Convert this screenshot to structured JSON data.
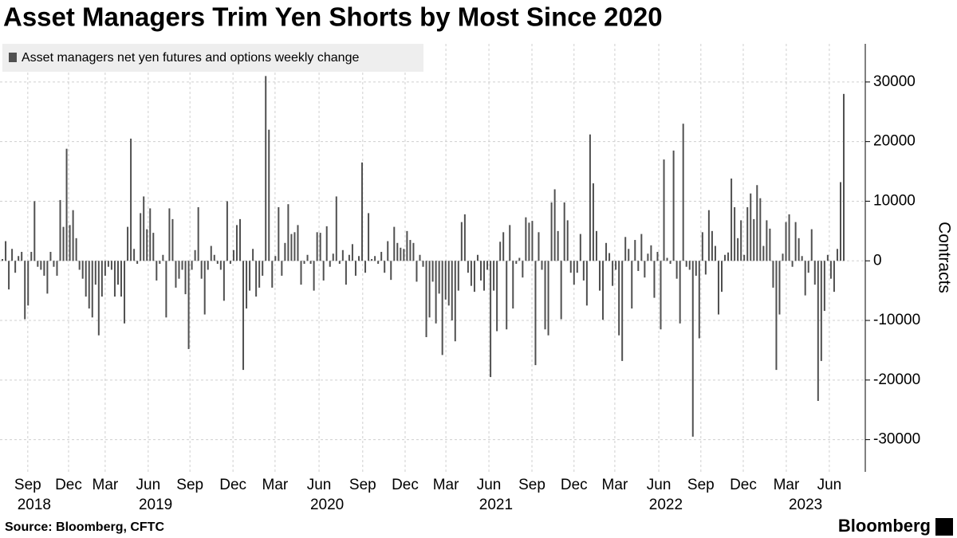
{
  "chart_data": {
    "type": "bar",
    "title": "Asset Managers Trim Yen Shorts by Most Since 2020",
    "series": [
      {
        "name": "Asset managers net yen futures and options weekly change",
        "color": "#505050",
        "values": [
          300,
          3300,
          -4800,
          2000,
          -2000,
          800,
          1500,
          -9800,
          -7500,
          1500,
          10000,
          -1000,
          -1500,
          -2500,
          -5500,
          1500,
          -1000,
          -2500,
          10200,
          5700,
          18800,
          6000,
          8500,
          3800,
          -1500,
          -3000,
          -6000,
          -8000,
          -9500,
          -4000,
          -12500,
          -6000,
          -2500,
          -1000,
          -1500,
          -6000,
          -4000,
          -6000,
          -10500,
          5700,
          20500,
          2000,
          -500,
          8000,
          10800,
          5300,
          8800,
          4700,
          -3300,
          -500,
          1000,
          -9500,
          8800,
          7000,
          -4500,
          -3000,
          -1500,
          -5600,
          -14800,
          -1500,
          1800,
          9000,
          -3000,
          -9000,
          -1500,
          2500,
          1000,
          -500,
          -1500,
          -6700,
          10000,
          -500,
          1800,
          6000,
          7000,
          -18300,
          -8000,
          -5000,
          2000,
          -6000,
          -4500,
          -2500,
          31000,
          22000,
          -4500,
          800,
          9000,
          -2500,
          3000,
          9500,
          4500,
          4800,
          6000,
          -4000,
          -500,
          1000,
          -500,
          -5000,
          4800,
          4700,
          -3300,
          5800,
          -1000,
          1200,
          10800,
          -500,
          1800,
          -4000,
          1000,
          2800,
          -2500,
          800,
          16500,
          -2000,
          8000,
          300,
          800,
          -500,
          1500,
          -2000,
          3300,
          -3200,
          5700,
          3000,
          2200,
          2000,
          5000,
          3500,
          3000,
          -3500,
          1000,
          -1000,
          -12800,
          -9500,
          -3500,
          -10500,
          -5500,
          -15800,
          -6500,
          -7500,
          -10000,
          -13500,
          -5000,
          6500,
          7800,
          -2000,
          -4200,
          -5200,
          1000,
          -3300,
          -5000,
          -1500,
          -19500,
          -5000,
          -11800,
          3200,
          4800,
          -11500,
          6000,
          -8000,
          -500,
          500,
          -2800,
          7300,
          6400,
          6700,
          -17500,
          4800,
          -1500,
          -11500,
          -12500,
          9800,
          12000,
          5000,
          -9800,
          9800,
          6800,
          -2000,
          -4000,
          -2000,
          4500,
          -3300,
          -7500,
          21200,
          13000,
          5000,
          -5000,
          -9900,
          3000,
          1300,
          -4200,
          -1500,
          -12500,
          -16800,
          4000,
          2000,
          -8000,
          3500,
          -1700,
          4500,
          -2800,
          1200,
          2600,
          -6200,
          1500,
          -11500,
          17000,
          500,
          -500,
          18500,
          -3000,
          -10500,
          23000,
          -1000,
          -1500,
          -29500,
          -2500,
          -13000,
          4800,
          -2300,
          8500,
          5000,
          2500,
          -9000,
          -5200,
          1000,
          1400,
          13800,
          9000,
          3800,
          6800,
          1000,
          9000,
          11300,
          7000,
          12700,
          10500,
          2500,
          6800,
          5400,
          -4500,
          -18300,
          -9000,
          1200,
          6500,
          7800,
          -1000,
          6500,
          3800,
          800,
          -5800,
          -2000,
          5300,
          -4000,
          -23500,
          -16800,
          -8400,
          1000,
          -3000,
          -5200,
          2000,
          13200,
          28000
        ]
      }
    ],
    "xlim": [
      -0.75,
      268.7
    ],
    "xticks": [
      {
        "value": 7.9,
        "label": "Sep"
      },
      {
        "value": 20.6,
        "label": "Dec"
      },
      {
        "value": 32.0,
        "label": "Mar"
      },
      {
        "value": 45.4,
        "label": "Jun"
      },
      {
        "value": 58.4,
        "label": "Sep"
      },
      {
        "value": 71.8,
        "label": "Dec"
      },
      {
        "value": 84.9,
        "label": "Mar"
      },
      {
        "value": 98.6,
        "label": "Jun"
      },
      {
        "value": 112.2,
        "label": "Sep"
      },
      {
        "value": 125.4,
        "label": "Dec"
      },
      {
        "value": 138.1,
        "label": "Mar"
      },
      {
        "value": 151.5,
        "label": "Jun"
      },
      {
        "value": 164.9,
        "label": "Sep"
      },
      {
        "value": 178.0,
        "label": "Dec"
      },
      {
        "value": 190.7,
        "label": "Mar"
      },
      {
        "value": 204.4,
        "label": "Jun"
      },
      {
        "value": 217.5,
        "label": "Sep"
      },
      {
        "value": 230.7,
        "label": "Dec"
      },
      {
        "value": 244.1,
        "label": "Mar"
      },
      {
        "value": 257.5,
        "label": "Jun"
      }
    ],
    "year_ticks": [
      {
        "value": 9.9,
        "label": "2018"
      },
      {
        "value": 47.7,
        "label": "2019"
      },
      {
        "value": 101.1,
        "label": "2020"
      },
      {
        "value": 153.7,
        "label": "2021"
      },
      {
        "value": 206.6,
        "label": "2022"
      },
      {
        "value": 250.1,
        "label": "2023"
      }
    ],
    "ylim": [
      -35400,
      36400
    ],
    "yticks": [
      -30000,
      -20000,
      -10000,
      0,
      10000,
      20000,
      30000
    ],
    "y_label": "Contracts",
    "grid": true,
    "source": "Source: Bloomberg, CFTC",
    "brand": "Bloomberg"
  }
}
